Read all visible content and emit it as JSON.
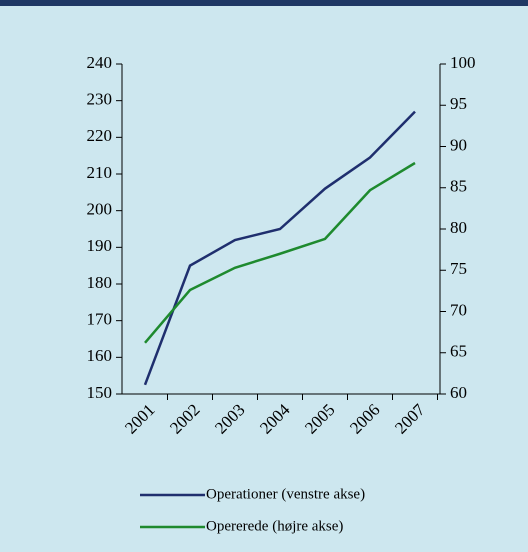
{
  "chart_data": {
    "type": "line",
    "categories": [
      "2001",
      "2002",
      "2003",
      "2004",
      "2005",
      "2006",
      "2007"
    ],
    "series": [
      {
        "name": "Operationer (venstre akse)",
        "color": "#1f2f6e",
        "values": [
          152.5,
          185,
          192,
          195,
          206,
          214.5,
          227
        ]
      },
      {
        "name": "Opererede (højre akse)",
        "color": "#1e8a2e",
        "axis": "y2",
        "values": [
          66.2,
          72.6,
          75.3,
          77,
          78.8,
          84.7,
          88
        ]
      }
    ],
    "ylim": [
      150,
      240
    ],
    "yticks": [
      150,
      160,
      170,
      180,
      190,
      200,
      210,
      220,
      230,
      240
    ],
    "y2lim": [
      60,
      100
    ],
    "y2ticks": [
      60,
      65,
      70,
      75,
      80,
      85,
      90,
      95,
      100
    ],
    "legend": "bottom"
  }
}
